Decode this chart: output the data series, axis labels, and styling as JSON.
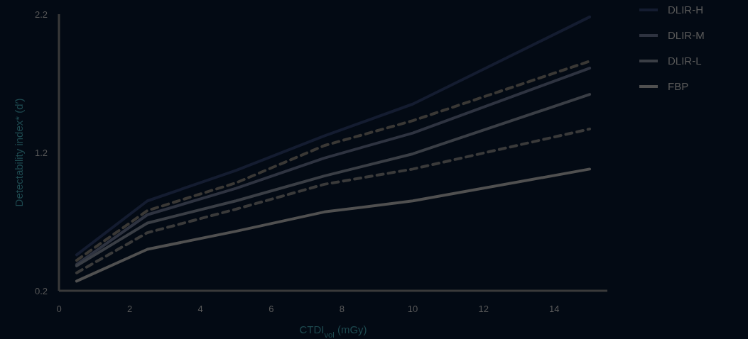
{
  "chart_data": {
    "type": "line",
    "xlabel": "CTDI$_{vol}$ (mGy)",
    "ylabel": "Detectability index* (d′)",
    "x": [
      0.5,
      2.5,
      5,
      7.5,
      10,
      15
    ],
    "xlim": [
      0,
      15.5
    ],
    "xticks": [
      0,
      2,
      4,
      6,
      8,
      10,
      12,
      14
    ],
    "ylim": [
      0.2,
      2.2
    ],
    "yticks": [
      0.2,
      1.2,
      2.2
    ],
    "grid": false,
    "legend": "right",
    "series": [
      {
        "name": "DLIR-H",
        "color": "#141c30",
        "line_style": "solid",
        "values": [
          0.46,
          0.85,
          1.07,
          1.32,
          1.55,
          2.18
        ]
      },
      {
        "color": "#3a3835",
        "line_style": "dashed",
        "values": [
          0.42,
          0.78,
          0.98,
          1.25,
          1.43,
          1.86
        ]
      },
      {
        "name": "DLIR-M",
        "color": "#2e3340",
        "line_style": "solid",
        "values": [
          0.39,
          0.75,
          0.94,
          1.16,
          1.34,
          1.81
        ]
      },
      {
        "name": "DLIR-L",
        "color": "#3a3e45",
        "line_style": "solid",
        "values": [
          0.38,
          0.69,
          0.85,
          1.03,
          1.19,
          1.62
        ]
      },
      {
        "color": "#3a3a3a",
        "line_style": "dashed",
        "values": [
          0.33,
          0.62,
          0.79,
          0.97,
          1.08,
          1.37
        ]
      },
      {
        "name": "FBP",
        "color": "#505050",
        "line_style": "solid",
        "values": [
          0.27,
          0.5,
          0.63,
          0.77,
          0.85,
          1.08
        ]
      }
    ]
  }
}
